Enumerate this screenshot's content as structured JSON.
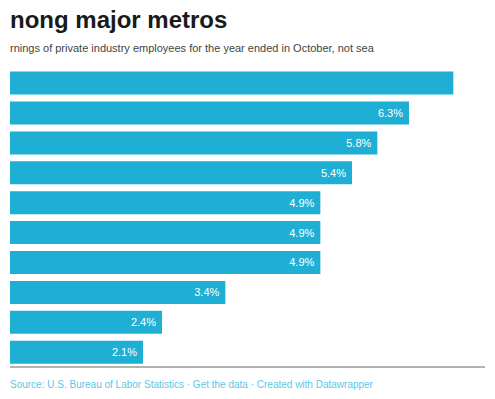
{
  "chart_data": {
    "type": "bar",
    "orientation": "horizontal",
    "title": "nong major metros",
    "subtitle": "rnings of private industry employees for the year ended in October, not sea",
    "annotations": [
      "Source: U.S. Bureau of Labor Statistics · Get the data · Created with Datawrapper"
    ],
    "values": [
      7.0,
      6.3,
      5.8,
      5.4,
      4.9,
      4.9,
      4.9,
      3.4,
      2.4,
      2.1
    ],
    "value_labels": [
      null,
      "6.3%",
      "5.8%",
      "5.4%",
      "4.9%",
      "4.9%",
      "4.9%",
      "3.4%",
      "2.4%",
      "2.1%"
    ],
    "color": "#1fafd4",
    "xlim": [
      0,
      7.5
    ],
    "data_labels": true,
    "tick_labels": false,
    "grid": false
  }
}
